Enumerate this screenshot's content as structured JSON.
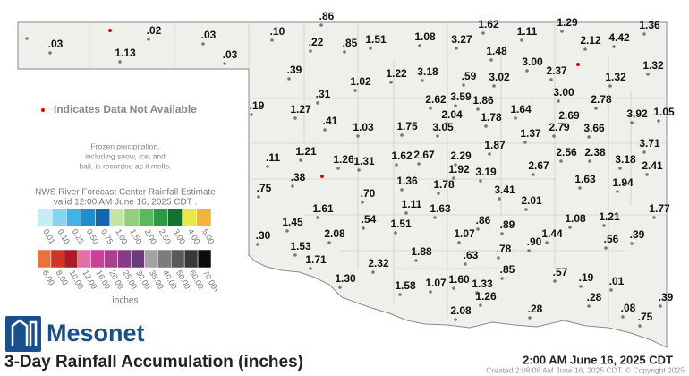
{
  "map": {
    "stations": [
      ".86",
      ".03",
      "1.13",
      ".02",
      ".03",
      ".03",
      ".10",
      ".22",
      ".85",
      "1.51",
      "1.08",
      "3.27",
      "1.62",
      "1.11",
      "1.29",
      "2.12",
      "4.42",
      "1.36",
      "1.48",
      "3.00",
      "2.37",
      "1.32",
      "1.32",
      ".39",
      "1.02",
      "1.22",
      "3.18",
      ".59",
      "3.02",
      ".31",
      "3.00",
      "2.78",
      "2.62",
      "3.59",
      "1.86",
      ".19",
      "1.27",
      "2.04",
      "1.78",
      "1.64",
      "2.69",
      "3.92",
      "1.05",
      ".41",
      "1.03",
      "1.75",
      "3.05",
      "1.37",
      "2.79",
      "3.66",
      "3.71",
      "1.87",
      "2.29",
      "1.21",
      ".11",
      "1.26",
      "1.31",
      "1.62",
      "2.67",
      "2.56",
      "2.38",
      "3.18",
      "2.41",
      "1.92",
      "3.19",
      "2.67",
      ".38",
      ".75",
      "1.36",
      "1.78",
      "1.63",
      "1.94",
      "3.41",
      ".70",
      "1.11",
      "1.63",
      "2.01",
      "1.61",
      "1.77",
      ".54",
      "1.51",
      ".86",
      ".89",
      "1.08",
      "1.21",
      "1.45",
      "2.08",
      ".30",
      "1.07",
      "1.44",
      ".56",
      ".39",
      ".90",
      "1.53",
      ".78",
      "1.88",
      ".63",
      "1.71",
      "2.32",
      ".85",
      ".57",
      ".19",
      ".01",
      "1.30",
      "1.58",
      "1.07",
      "1.60",
      "1.33",
      "1.26",
      ".28",
      ".39",
      "2.08",
      ".28",
      ".08",
      ".75"
    ]
  },
  "legend": {
    "unavailable": "Indicates Data Not Available",
    "note": [
      "Frozen precipitation,",
      "including snow, ice, and",
      "hail, is recorded as it melts."
    ],
    "estimate": [
      "NWS River Forecast Center Rainfall Estimate",
      "valid 12:00 AM June 16, 2025 CDT ."
    ],
    "scale_top": [
      "0.01",
      "0.10",
      "0.25",
      "0.50",
      "0.75",
      "1.00",
      "1.50",
      "2.00",
      "2.50",
      "3.00",
      "4.00",
      "5.00"
    ],
    "colors_top": [
      "#c6ecf8",
      "#86d4f0",
      "#40b4e6",
      "#1e8ed0",
      "#1466b0",
      "#c5e5a5",
      "#94cd7e",
      "#5cb85c",
      "#2e9a44",
      "#13722f",
      "#e8e84a",
      "#f0b43c"
    ],
    "scale_bottom": [
      "6.00",
      "8.00",
      "10.00",
      "12.00",
      "16.00",
      "20.00",
      "25.00",
      "30.00",
      "35.00",
      "40.00",
      "50.00",
      "60.00",
      "70.00+"
    ],
    "colors_bottom": [
      "#e8743c",
      "#d2342c",
      "#ad1c24",
      "#e36fa6",
      "#c8409a",
      "#a8408f",
      "#893a8a",
      "#6a3a7a",
      "#a3a3a3",
      "#7c7c7c",
      "#5a5a5a",
      "#383838",
      "#0d0d0d"
    ],
    "units": "inches"
  },
  "logo": "Mesonet",
  "title": "3-Day Rainfall Accumulation (inches)",
  "timestamp": "2:00 AM June 16, 2025 CDT",
  "created": "Created 2:08:06 AM June 16, 2025 CDT. © Copyright 2025"
}
